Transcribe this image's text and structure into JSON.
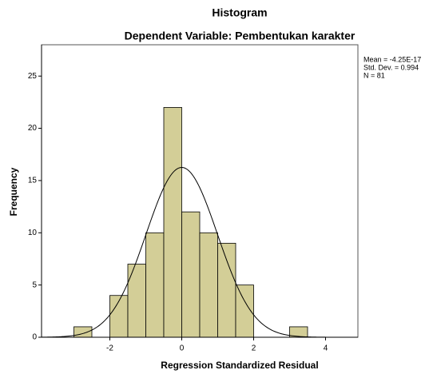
{
  "chart_data": {
    "type": "histogram",
    "title": "Histogram",
    "subtitle": "Dependent Variable: Pembentukan karakter",
    "x_label": "Regression Standardized Residual",
    "y_label": "Frequency",
    "bins": [
      -3.0,
      -2.5,
      -2.0,
      -1.5,
      -1.0,
      -0.5,
      0.0,
      0.5,
      1.0,
      1.5,
      2.0,
      2.5,
      3.0,
      3.5
    ],
    "values": [
      1,
      0,
      4,
      7,
      10,
      22,
      12,
      10,
      9,
      5,
      0,
      0,
      1
    ],
    "color": "#d3ce97",
    "xlim": [
      -3.9,
      4.9
    ],
    "ylim": [
      0,
      28
    ],
    "xticks": [
      -2,
      0,
      2,
      4
    ],
    "yticks": [
      0,
      5,
      10,
      15,
      20,
      25
    ],
    "stats": {
      "mean": {
        "value": -4.25e-17,
        "label": "Mean = -4.25E-17"
      },
      "sd": {
        "value": 0.994,
        "label": "Std. Dev. = 0.994"
      },
      "n": {
        "value": 81,
        "label": "N = 81"
      }
    }
  }
}
